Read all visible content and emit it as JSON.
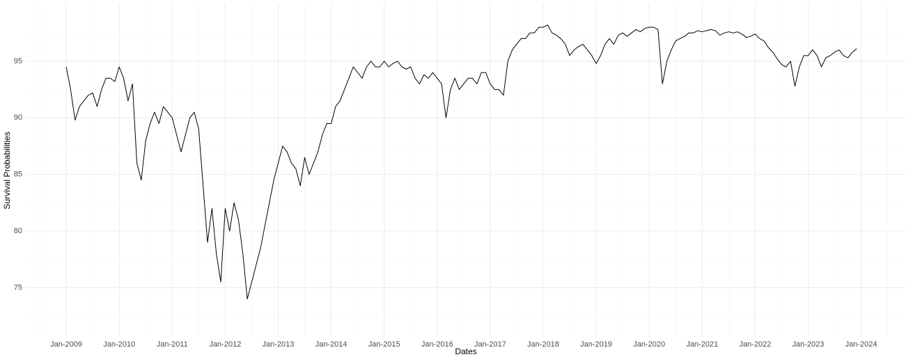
{
  "chart_data": {
    "type": "line",
    "xlabel": "Dates",
    "ylabel": "Survival Probabilities",
    "color": "#000000",
    "grid": true,
    "xlim": [
      "2008-04",
      "2024-11"
    ],
    "xticks": [
      {
        "value": "2009-01",
        "label": "Jan-2009"
      },
      {
        "value": "2010-01",
        "label": "Jan-2010"
      },
      {
        "value": "2011-01",
        "label": "Jan-2011"
      },
      {
        "value": "2012-01",
        "label": "Jan-2012"
      },
      {
        "value": "2013-01",
        "label": "Jan-2013"
      },
      {
        "value": "2014-01",
        "label": "Jan-2014"
      },
      {
        "value": "2015-01",
        "label": "Jan-2015"
      },
      {
        "value": "2016-01",
        "label": "Jan-2016"
      },
      {
        "value": "2017-01",
        "label": "Jan-2017"
      },
      {
        "value": "2018-01",
        "label": "Jan-2018"
      },
      {
        "value": "2019-01",
        "label": "Jan-2019"
      },
      {
        "value": "2020-01",
        "label": "Jan-2020"
      },
      {
        "value": "2021-01",
        "label": "Jan-2021"
      },
      {
        "value": "2022-01",
        "label": "Jan-2022"
      },
      {
        "value": "2023-01",
        "label": "Jan-2023"
      },
      {
        "value": "2024-01",
        "label": "Jan-2024"
      }
    ],
    "ylim": [
      70.6,
      100.1
    ],
    "yticks": [
      75,
      80,
      85,
      90,
      95
    ],
    "x": [
      "2009-01",
      "2009-02",
      "2009-03",
      "2009-04",
      "2009-05",
      "2009-06",
      "2009-07",
      "2009-08",
      "2009-09",
      "2009-10",
      "2009-11",
      "2009-12",
      "2010-01",
      "2010-02",
      "2010-03",
      "2010-04",
      "2010-05",
      "2010-06",
      "2010-07",
      "2010-08",
      "2010-09",
      "2010-10",
      "2010-11",
      "2010-12",
      "2011-01",
      "2011-02",
      "2011-03",
      "2011-04",
      "2011-05",
      "2011-06",
      "2011-07",
      "2011-08",
      "2011-09",
      "2011-10",
      "2011-11",
      "2011-12",
      "2012-01",
      "2012-02",
      "2012-03",
      "2012-04",
      "2012-05",
      "2012-06",
      "2012-07",
      "2012-08",
      "2012-09",
      "2012-10",
      "2012-11",
      "2012-12",
      "2013-01",
      "2013-02",
      "2013-03",
      "2013-04",
      "2013-05",
      "2013-06",
      "2013-07",
      "2013-08",
      "2013-09",
      "2013-10",
      "2013-11",
      "2013-12",
      "2014-01",
      "2014-02",
      "2014-03",
      "2014-04",
      "2014-05",
      "2014-06",
      "2014-07",
      "2014-08",
      "2014-09",
      "2014-10",
      "2014-11",
      "2014-12",
      "2015-01",
      "2015-02",
      "2015-03",
      "2015-04",
      "2015-05",
      "2015-06",
      "2015-07",
      "2015-08",
      "2015-09",
      "2015-10",
      "2015-11",
      "2015-12",
      "2016-01",
      "2016-02",
      "2016-03",
      "2016-04",
      "2016-05",
      "2016-06",
      "2016-07",
      "2016-08",
      "2016-09",
      "2016-10",
      "2016-11",
      "2016-12",
      "2017-01",
      "2017-02",
      "2017-03",
      "2017-04",
      "2017-05",
      "2017-06",
      "2017-07",
      "2017-08",
      "2017-09",
      "2017-10",
      "2017-11",
      "2017-12",
      "2018-01",
      "2018-02",
      "2018-03",
      "2018-04",
      "2018-05",
      "2018-06",
      "2018-07",
      "2018-08",
      "2018-09",
      "2018-10",
      "2018-11",
      "2018-12",
      "2019-01",
      "2019-02",
      "2019-03",
      "2019-04",
      "2019-05",
      "2019-06",
      "2019-07",
      "2019-08",
      "2019-09",
      "2019-10",
      "2019-11",
      "2019-12",
      "2020-01",
      "2020-02",
      "2020-03",
      "2020-04",
      "2020-05",
      "2020-06",
      "2020-07",
      "2020-08",
      "2020-09",
      "2020-10",
      "2020-11",
      "2020-12",
      "2021-01",
      "2021-02",
      "2021-03",
      "2021-04",
      "2021-05",
      "2021-06",
      "2021-07",
      "2021-08",
      "2021-09",
      "2021-10",
      "2021-11",
      "2021-12",
      "2022-01",
      "2022-02",
      "2022-03",
      "2022-04",
      "2022-05",
      "2022-06",
      "2022-07",
      "2022-08",
      "2022-09",
      "2022-10",
      "2022-11",
      "2022-12",
      "2023-01",
      "2023-02",
      "2023-03",
      "2023-04",
      "2023-05",
      "2023-06",
      "2023-07",
      "2023-08",
      "2023-09",
      "2023-10",
      "2023-11",
      "2023-12"
    ],
    "values": [
      94.5,
      92.5,
      89.8,
      91,
      91.5,
      92,
      92.2,
      91,
      92.5,
      93.5,
      93.5,
      93.2,
      94.5,
      93.5,
      91.5,
      93,
      86,
      84.5,
      88,
      89.5,
      90.5,
      89.5,
      91,
      90.5,
      90,
      88.5,
      87,
      88.5,
      90,
      90.5,
      89,
      84,
      79,
      82,
      78,
      75.5,
      82,
      80,
      82.5,
      81,
      78,
      74,
      75.5,
      77,
      78.5,
      80.5,
      82.5,
      84.5,
      86,
      87.5,
      87,
      86,
      85.5,
      84,
      86.5,
      85,
      86,
      87,
      88.5,
      89.5,
      89.5,
      91,
      91.5,
      92.5,
      93.5,
      94.5,
      94,
      93.5,
      94.5,
      95,
      94.5,
      94.5,
      95,
      94.5,
      94.8,
      95,
      94.5,
      94.3,
      94.5,
      93.5,
      93,
      93.8,
      93.5,
      94,
      93.5,
      93,
      90,
      92.5,
      93.5,
      92.5,
      93,
      93.5,
      93.5,
      93,
      94,
      94,
      93,
      92.5,
      92.5,
      92,
      95,
      96,
      96.5,
      97,
      97,
      97.5,
      97.5,
      98,
      98,
      98.2,
      97.5,
      97.3,
      97,
      96.5,
      95.5,
      96,
      96.3,
      96.5,
      96,
      95.5,
      94.8,
      95.5,
      96.5,
      97,
      96.5,
      97.3,
      97.5,
      97.2,
      97.5,
      97.8,
      97.6,
      97.9,
      98,
      98,
      97.8,
      93,
      95,
      96,
      96.8,
      97,
      97.2,
      97.5,
      97.5,
      97.7,
      97.6,
      97.7,
      97.8,
      97.7,
      97.3,
      97.5,
      97.6,
      97.5,
      97.6,
      97.4,
      97.1,
      97.2,
      97.4,
      97,
      96.8,
      96.2,
      95.8,
      95.2,
      94.7,
      94.5,
      95,
      92.8,
      94.5,
      95.5,
      95.5,
      96,
      95.5,
      94.5,
      95.3,
      95.5,
      95.8,
      96,
      95.5,
      95.3,
      95.8,
      96.1
    ]
  }
}
